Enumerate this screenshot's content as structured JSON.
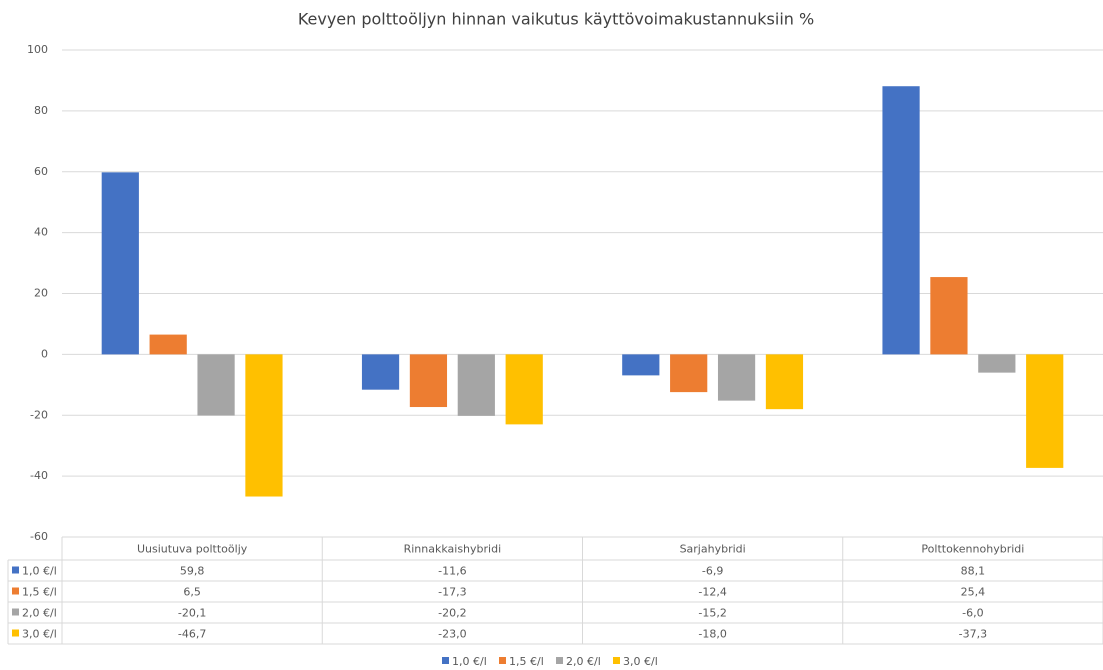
{
  "chart_data": {
    "type": "bar",
    "title": "Kevyen polttoöljyn hinnan vaikutus käyttövoimakustannuksiin %",
    "categories": [
      "Uusiutuva polttoöljy",
      "Rinnakkaishybridi",
      "Sarjahybridi",
      "Polttokennohybridi"
    ],
    "series": [
      {
        "name": "1,0 €/l",
        "color": "#4472c4",
        "values": [
          59.8,
          -11.6,
          -6.9,
          88.1
        ],
        "value_labels": [
          "59,8",
          "-11,6",
          "-6,9",
          "88,1"
        ]
      },
      {
        "name": "1,5 €/l",
        "color": "#ed7d31",
        "values": [
          6.5,
          -17.3,
          -12.4,
          25.4
        ],
        "value_labels": [
          "6,5",
          "-17,3",
          "-12,4",
          "25,4"
        ]
      },
      {
        "name": "2,0 €/l",
        "color": "#a5a5a5",
        "values": [
          -20.1,
          -20.2,
          -15.2,
          -6.0
        ],
        "value_labels": [
          "-20,1",
          "-20,2",
          "-15,2",
          "-6,0"
        ]
      },
      {
        "name": "3,0 €/l",
        "color": "#ffc000",
        "values": [
          -46.7,
          -23.0,
          -18.0,
          -37.3
        ],
        "value_labels": [
          "-46,7",
          "-23,0",
          "-18,0",
          "-37,3"
        ]
      }
    ],
    "ylim": [
      -60,
      100
    ],
    "yticks": [
      -60,
      -40,
      -20,
      0,
      20,
      40,
      60,
      80,
      100
    ],
    "grid": true,
    "legend": "bottom"
  }
}
